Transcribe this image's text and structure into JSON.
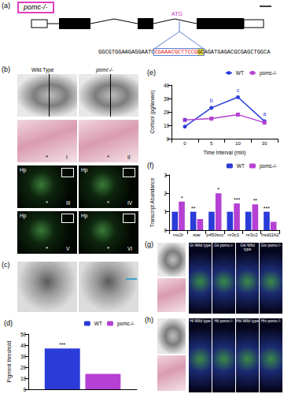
{
  "figure": {
    "a": {
      "letter": "(a)",
      "gene_label": "pomc-/-",
      "site": "ATG",
      "sequence": [
        {
          "text": "GGCGTGGAAGAGGAATC",
          "style": "plain"
        },
        {
          "text": "CGAAACGCTTCCG",
          "style": "red"
        },
        {
          "text": "GC",
          "style": "highlight"
        },
        {
          "text": "AGATGAGACGCGAGCTGGCA",
          "style": "plain"
        }
      ]
    },
    "b": {
      "letter": "(b)",
      "columns": [
        "Wild Type",
        "pomc-/-"
      ],
      "panels": [
        "I",
        "II",
        "III",
        "IV",
        "V",
        "VI"
      ],
      "region": "Hp",
      "mark": "*"
    },
    "c": {
      "letter": "(c)"
    },
    "g": {
      "letter": "(g)",
      "columns": [
        "Gi Wild type",
        "Gii pomc-/-",
        "Giii Wild type",
        "Giv pomc-/-"
      ]
    },
    "h": {
      "letter": "(h)",
      "columns": [
        "Hi Wild type",
        "Hii pomc-/-",
        "Hiii Wild type",
        "Hiv pomc-/-"
      ]
    }
  },
  "chart_data": [
    {
      "type": "bar",
      "title": "(d)",
      "categories": [
        null
      ],
      "series": [
        {
          "name": "WT",
          "color": "#2b3bd8",
          "values": [
            37
          ]
        },
        {
          "name": "pomc-/-",
          "color": "#b540d3",
          "values": [
            14
          ]
        }
      ],
      "annotations": [
        "***"
      ],
      "ylabel": "Pigment threshold",
      "ylim": [
        0,
        50
      ],
      "yticks": [
        0,
        10,
        20,
        30,
        40,
        50
      ],
      "legend": "top-right",
      "tick_labels": "y"
    },
    {
      "type": "line",
      "title": "(e)",
      "categories": [
        "0",
        "5",
        "10",
        "30"
      ],
      "series": [
        {
          "name": "WT",
          "color": "#2b3bd8",
          "marker": "circle",
          "values": [
            9,
            23,
            31,
            13
          ],
          "point_labels": [
            "a",
            "b",
            "c",
            "a"
          ]
        },
        {
          "name": "pomc-/-",
          "color": "#b540d3",
          "marker": "square",
          "values": [
            14,
            15,
            18,
            12
          ]
        }
      ],
      "xlabel": "Time Interval (min)",
      "ylabel": "Cortisol (pg/larvae)",
      "ylim": [
        0,
        40
      ],
      "yticks": [
        0,
        10,
        20,
        30,
        40
      ],
      "legend": "top-right"
    },
    {
      "type": "bar",
      "title": "(f)",
      "categories": [
        "mc2r",
        "star",
        "p450scc",
        "nr3c1",
        "nr3c2",
        "hsd11b2"
      ],
      "series": [
        {
          "name": "WT",
          "color": "#2b3bd8",
          "values": [
            1,
            1,
            1,
            1,
            1,
            1
          ]
        },
        {
          "name": "pomc-/-",
          "color": "#b540d3",
          "values": [
            1.55,
            0.6,
            2.0,
            1.45,
            1.4,
            0.45
          ]
        }
      ],
      "annotations": [
        "*",
        "**",
        "*",
        "***",
        "**",
        "***"
      ],
      "ylabel": "Transcript Abundance",
      "ylim": [
        0,
        3
      ],
      "yticks": [
        0,
        1,
        2,
        3
      ],
      "legend": "top-right"
    }
  ]
}
